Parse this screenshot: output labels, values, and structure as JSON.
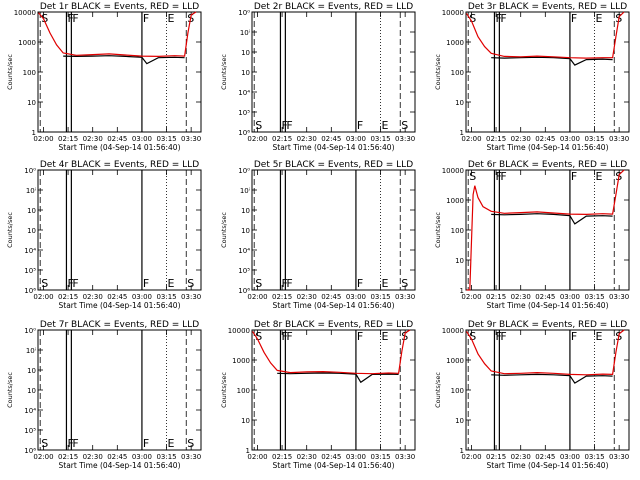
{
  "colors": {
    "events": "#000000",
    "lld": "#e00000",
    "axes": "#000000",
    "background": "#ffffff"
  },
  "chart_data": [
    {
      "type": "line",
      "title": "Det 1r BLACK = Events, RED = LLD",
      "xlabel": "Start Time (04-Sep-14 01:56:40)",
      "ylabel": "Counts/sec",
      "yscale": "log",
      "ylim": [
        1,
        10000
      ],
      "y_tick_labels": [
        "1",
        "10",
        "100",
        "1000",
        "10000"
      ],
      "x_tick_labels": [
        "02:00",
        "02:15",
        "02:30",
        "02:45",
        "03:00",
        "03:15",
        "03:30"
      ],
      "xlim": [
        "01:56:40",
        "03:36:00"
      ],
      "markers": [
        {
          "label": "S",
          "x": "01:58"
        },
        {
          "label": "F",
          "x": "02:14"
        },
        {
          "label": "F",
          "x": "02:17"
        },
        {
          "label": "F",
          "x": "03:00"
        },
        {
          "label": "E",
          "x": "03:15"
        },
        {
          "label": "S",
          "x": "03:27"
        }
      ],
      "series": [
        {
          "name": "BLACK",
          "role": "events",
          "x": [
            "02:00",
            "02:06",
            "02:12",
            "02:20",
            "02:30",
            "02:40",
            "02:50",
            "03:00",
            "03:03",
            "03:10",
            "03:20",
            "03:26",
            "03:27",
            "03:30",
            "03:33"
          ],
          "y": [
            null,
            null,
            340,
            330,
            340,
            350,
            330,
            310,
            190,
            300,
            310,
            300,
            null,
            null,
            null
          ]
        },
        {
          "name": "RED",
          "role": "lld",
          "x": [
            "01:57",
            "02:00",
            "02:04",
            "02:08",
            "02:12",
            "02:20",
            "02:30",
            "02:40",
            "02:50",
            "03:00",
            "03:10",
            "03:20",
            "03:26",
            "03:28",
            "03:30",
            "03:33"
          ],
          "y": [
            9500,
            6000,
            2000,
            800,
            430,
            360,
            380,
            400,
            370,
            340,
            330,
            350,
            340,
            2000,
            8000,
            10000
          ]
        }
      ]
    },
    {
      "type": "line",
      "title": "Det 2r BLACK = Events, RED = LLD",
      "xlabel": "Start Time (04-Sep-14 01:56:40)",
      "ylabel": "Counts/sec",
      "yscale": "log",
      "y_tick_labels": [
        "10⁶",
        "10⁵",
        "10⁴",
        "10⁳",
        "10⁲",
        "10ⁱ",
        "10⁰"
      ],
      "x_tick_labels": [
        "02:00",
        "02:15",
        "02:30",
        "02:45",
        "03:00",
        "03:15",
        "03:30"
      ],
      "xlim": [
        "01:56:40",
        "03:36:00"
      ],
      "markers": [
        {
          "label": "S",
          "x": "01:58"
        },
        {
          "label": "F",
          "x": "02:14"
        },
        {
          "label": "F",
          "x": "02:17"
        },
        {
          "label": "F",
          "x": "03:00"
        },
        {
          "label": "E",
          "x": "03:15"
        },
        {
          "label": "S",
          "x": "03:27"
        }
      ],
      "series": []
    },
    {
      "type": "line",
      "title": "Det 3r BLACK = Events, RED = LLD",
      "xlabel": "Start Time (04-Sep-14 01:56:40)",
      "ylabel": "Counts/sec",
      "yscale": "log",
      "ylim": [
        1,
        10000
      ],
      "y_tick_labels": [
        "1",
        "10",
        "100",
        "1000",
        "10000"
      ],
      "x_tick_labels": [
        "02:00",
        "02:15",
        "02:30",
        "02:45",
        "03:00",
        "03:15",
        "03:30"
      ],
      "xlim": [
        "01:56:40",
        "03:36:00"
      ],
      "markers": [
        {
          "label": "S",
          "x": "01:58"
        },
        {
          "label": "F",
          "x": "02:14"
        },
        {
          "label": "F",
          "x": "02:17"
        },
        {
          "label": "F",
          "x": "03:00"
        },
        {
          "label": "E",
          "x": "03:15"
        },
        {
          "label": "S",
          "x": "03:27"
        }
      ],
      "series": [
        {
          "name": "BLACK",
          "role": "events",
          "x": [
            "02:12",
            "02:20",
            "02:30",
            "02:40",
            "02:50",
            "03:00",
            "03:03",
            "03:10",
            "03:20",
            "03:26"
          ],
          "y": [
            300,
            290,
            300,
            310,
            300,
            280,
            170,
            260,
            270,
            260
          ]
        },
        {
          "name": "RED",
          "role": "lld",
          "x": [
            "01:57",
            "02:00",
            "02:04",
            "02:08",
            "02:12",
            "02:20",
            "02:30",
            "02:40",
            "02:50",
            "03:00",
            "03:10",
            "03:20",
            "03:26",
            "03:28",
            "03:30",
            "03:33"
          ],
          "y": [
            9000,
            5000,
            1500,
            700,
            420,
            330,
            320,
            340,
            320,
            300,
            290,
            300,
            300,
            1500,
            7000,
            10000
          ]
        }
      ]
    },
    {
      "type": "line",
      "title": "Det 4r BLACK = Events, RED = LLD",
      "xlabel": "Start Time (04-Sep-14 01:56:40)",
      "ylabel": "Counts/sec",
      "yscale": "log",
      "y_tick_labels": [
        "10⁶",
        "10⁵",
        "10⁴",
        "10⁳",
        "10⁲",
        "10ⁱ",
        "10⁰"
      ],
      "x_tick_labels": [
        "02:00",
        "02:15",
        "02:30",
        "02:45",
        "03:00",
        "03:15",
        "03:30"
      ],
      "xlim": [
        "01:56:40",
        "03:36:00"
      ],
      "markers": [
        {
          "label": "S",
          "x": "01:58"
        },
        {
          "label": "F",
          "x": "02:14"
        },
        {
          "label": "F",
          "x": "02:17"
        },
        {
          "label": "F",
          "x": "03:00"
        },
        {
          "label": "E",
          "x": "03:15"
        },
        {
          "label": "S",
          "x": "03:27"
        }
      ],
      "series": []
    },
    {
      "type": "line",
      "title": "Det 5r BLACK = Events, RED = LLD",
      "xlabel": "Start Time (04-Sep-14 01:56:40)",
      "ylabel": "Counts/sec",
      "yscale": "log",
      "y_tick_labels": [
        "10⁶",
        "10⁵",
        "10⁴",
        "10⁳",
        "10⁲",
        "10ⁱ",
        "10⁰"
      ],
      "x_tick_labels": [
        "02:00",
        "02:15",
        "02:30",
        "02:45",
        "03:00",
        "03:15",
        "03:30"
      ],
      "xlim": [
        "01:56:40",
        "03:36:00"
      ],
      "markers": [
        {
          "label": "S",
          "x": "01:58"
        },
        {
          "label": "F",
          "x": "02:14"
        },
        {
          "label": "F",
          "x": "02:17"
        },
        {
          "label": "F",
          "x": "03:00"
        },
        {
          "label": "E",
          "x": "03:15"
        },
        {
          "label": "S",
          "x": "03:27"
        }
      ],
      "series": []
    },
    {
      "type": "line",
      "title": "Det 6r BLACK = Events, RED = LLD",
      "xlabel": "Start Time (04-Sep-14 01:56:40)",
      "ylabel": "Counts/sec",
      "yscale": "log",
      "ylim": [
        1,
        10000
      ],
      "y_tick_labels": [
        "1",
        "10",
        "100",
        "1000",
        "10000"
      ],
      "x_tick_labels": [
        "02:00",
        "02:15",
        "02:30",
        "02:45",
        "03:00",
        "03:15",
        "03:30"
      ],
      "xlim": [
        "01:56:40",
        "03:36:00"
      ],
      "markers": [
        {
          "label": "S",
          "x": "01:58"
        },
        {
          "label": "F",
          "x": "02:14"
        },
        {
          "label": "F",
          "x": "02:17"
        },
        {
          "label": "F",
          "x": "03:00"
        },
        {
          "label": "E",
          "x": "03:15"
        },
        {
          "label": "S",
          "x": "03:27"
        }
      ],
      "series": [
        {
          "name": "BLACK",
          "role": "events",
          "x": [
            "02:12",
            "02:20",
            "02:30",
            "02:40",
            "02:50",
            "03:00",
            "03:03",
            "03:10",
            "03:20",
            "03:26"
          ],
          "y": [
            330,
            320,
            330,
            350,
            330,
            300,
            160,
            290,
            300,
            290
          ]
        },
        {
          "name": "RED",
          "role": "lld",
          "x": [
            "01:57",
            "01:59",
            "02:01",
            "02:02",
            "02:04",
            "02:07",
            "02:12",
            "02:20",
            "02:30",
            "02:40",
            "02:50",
            "03:00",
            "03:10",
            "03:20",
            "03:26",
            "03:28",
            "03:30",
            "03:33"
          ],
          "y": [
            1,
            1,
            1500,
            3000,
            1200,
            600,
            420,
            360,
            380,
            400,
            370,
            340,
            330,
            350,
            340,
            1500,
            7000,
            10000
          ]
        }
      ]
    },
    {
      "type": "line",
      "title": "Det 7r BLACK = Events, RED = LLD",
      "xlabel": "Start Time (04-Sep-14 01:56:40)",
      "ylabel": "Counts/sec",
      "yscale": "log",
      "y_tick_labels": [
        "10⁶",
        "10⁵",
        "10⁴",
        "10⁳",
        "10⁲",
        "10ⁱ",
        "10⁰"
      ],
      "x_tick_labels": [
        "02:00",
        "02:15",
        "02:30",
        "02:45",
        "03:00",
        "03:15",
        "03:30"
      ],
      "xlim": [
        "01:56:40",
        "03:36:00"
      ],
      "markers": [
        {
          "label": "S",
          "x": "01:58"
        },
        {
          "label": "F",
          "x": "02:14"
        },
        {
          "label": "F",
          "x": "02:17"
        },
        {
          "label": "F",
          "x": "03:00"
        },
        {
          "label": "E",
          "x": "03:15"
        },
        {
          "label": "S",
          "x": "03:27"
        }
      ],
      "series": []
    },
    {
      "type": "line",
      "title": "Det 8r BLACK = Events, RED = LLD",
      "xlabel": "Start Time (04-Sep-14 01:56:40)",
      "ylabel": "Counts/sec",
      "yscale": "log",
      "ylim": [
        1,
        10000
      ],
      "y_tick_labels": [
        "1",
        "10",
        "100",
        "1000",
        "10000"
      ],
      "x_tick_labels": [
        "02:00",
        "02:15",
        "02:30",
        "02:45",
        "03:00",
        "03:15",
        "03:30"
      ],
      "xlim": [
        "01:56:40",
        "03:36:00"
      ],
      "markers": [
        {
          "label": "S",
          "x": "01:58"
        },
        {
          "label": "F",
          "x": "02:14"
        },
        {
          "label": "F",
          "x": "02:17"
        },
        {
          "label": "F",
          "x": "03:00"
        },
        {
          "label": "E",
          "x": "03:15"
        },
        {
          "label": "S",
          "x": "03:27"
        }
      ],
      "series": [
        {
          "name": "BLACK",
          "role": "events",
          "x": [
            "02:12",
            "02:20",
            "02:30",
            "02:40",
            "02:50",
            "03:00",
            "03:03",
            "03:10",
            "03:20",
            "03:26"
          ],
          "y": [
            360,
            350,
            360,
            370,
            360,
            340,
            180,
            330,
            340,
            330
          ]
        },
        {
          "name": "RED",
          "role": "lld",
          "x": [
            "01:57",
            "02:00",
            "02:04",
            "02:08",
            "02:12",
            "02:20",
            "02:30",
            "02:40",
            "02:50",
            "03:00",
            "03:10",
            "03:20",
            "03:26",
            "03:28",
            "03:30",
            "03:33"
          ],
          "y": [
            9000,
            5000,
            1800,
            800,
            450,
            380,
            400,
            410,
            390,
            360,
            350,
            370,
            360,
            2000,
            8000,
            10000
          ]
        }
      ]
    },
    {
      "type": "line",
      "title": "Det 9r BLACK = Events, RED = LLD",
      "xlabel": "Start Time (04-Sep-14 01:56:40)",
      "ylabel": "Counts/sec",
      "yscale": "log",
      "ylim": [
        1,
        10000
      ],
      "y_tick_labels": [
        "1",
        "10",
        "100",
        "1000",
        "10000"
      ],
      "x_tick_labels": [
        "02:00",
        "02:15",
        "02:30",
        "02:45",
        "03:00",
        "03:15",
        "03:30"
      ],
      "xlim": [
        "01:56:40",
        "03:36:00"
      ],
      "markers": [
        {
          "label": "S",
          "x": "01:58"
        },
        {
          "label": "F",
          "x": "02:14"
        },
        {
          "label": "F",
          "x": "02:17"
        },
        {
          "label": "F",
          "x": "03:00"
        },
        {
          "label": "E",
          "x": "03:15"
        },
        {
          "label": "S",
          "x": "03:27"
        }
      ],
      "series": [
        {
          "name": "BLACK",
          "role": "events",
          "x": [
            "02:12",
            "02:20",
            "02:30",
            "02:40",
            "02:50",
            "03:00",
            "03:03",
            "03:10",
            "03:20",
            "03:26"
          ],
          "y": [
            320,
            310,
            320,
            330,
            320,
            300,
            170,
            290,
            300,
            290
          ]
        },
        {
          "name": "RED",
          "role": "lld",
          "x": [
            "01:57",
            "02:00",
            "02:04",
            "02:08",
            "02:12",
            "02:20",
            "02:30",
            "02:40",
            "02:50",
            "03:00",
            "03:10",
            "03:20",
            "03:26",
            "03:28",
            "03:30",
            "03:33"
          ],
          "y": [
            9000,
            5000,
            1600,
            750,
            430,
            350,
            360,
            380,
            360,
            330,
            320,
            340,
            330,
            1800,
            7500,
            10000
          ]
        }
      ]
    }
  ]
}
